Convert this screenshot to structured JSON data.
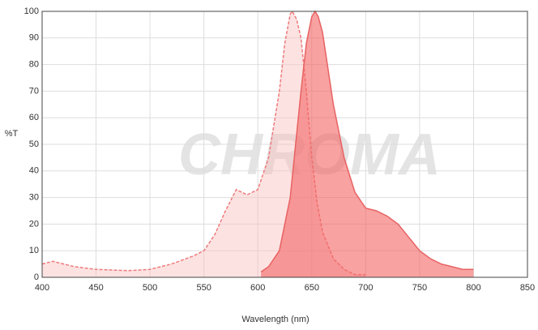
{
  "chart_data": {
    "type": "area",
    "watermark": "CHROMA",
    "x_label": "Wavelength (nm)",
    "y_label": "%T",
    "xlim": [
      400,
      850
    ],
    "xticks": [
      400,
      450,
      500,
      550,
      600,
      650,
      700,
      750,
      800,
      850
    ],
    "ylim": [
      0,
      100
    ],
    "yticks": [
      0,
      10,
      20,
      30,
      40,
      50,
      60,
      70,
      80,
      90,
      100
    ],
    "grid": true,
    "series": [
      {
        "color": "#ee7b7b",
        "fill": "rgba(250,190,190,0.45)",
        "dashed": true,
        "x": [
          400,
          410,
          420,
          430,
          450,
          480,
          500,
          520,
          540,
          550,
          560,
          570,
          580,
          590,
          600,
          610,
          620,
          625,
          630,
          632,
          636,
          640,
          645,
          650,
          655,
          660,
          670,
          680,
          690,
          700
        ],
        "values": [
          5,
          6,
          5,
          4,
          3,
          2.5,
          3,
          5,
          8,
          10,
          16,
          25,
          33,
          31,
          33,
          45,
          70,
          88,
          99,
          100,
          97,
          90,
          70,
          45,
          28,
          17,
          7,
          3,
          1,
          1
        ]
      },
      {
        "color": "#e86262",
        "fill": "rgba(244,100,100,0.6)",
        "dashed": false,
        "x": [
          603,
          610,
          620,
          630,
          640,
          645,
          650,
          653,
          656,
          660,
          670,
          680,
          690,
          700,
          710,
          720,
          730,
          740,
          750,
          760,
          770,
          780,
          790,
          800
        ],
        "values": [
          2,
          4,
          10,
          30,
          70,
          88,
          98,
          100,
          98,
          92,
          65,
          45,
          32,
          26,
          25,
          23,
          20,
          15,
          10,
          7,
          5,
          4,
          3,
          3
        ]
      }
    ]
  }
}
